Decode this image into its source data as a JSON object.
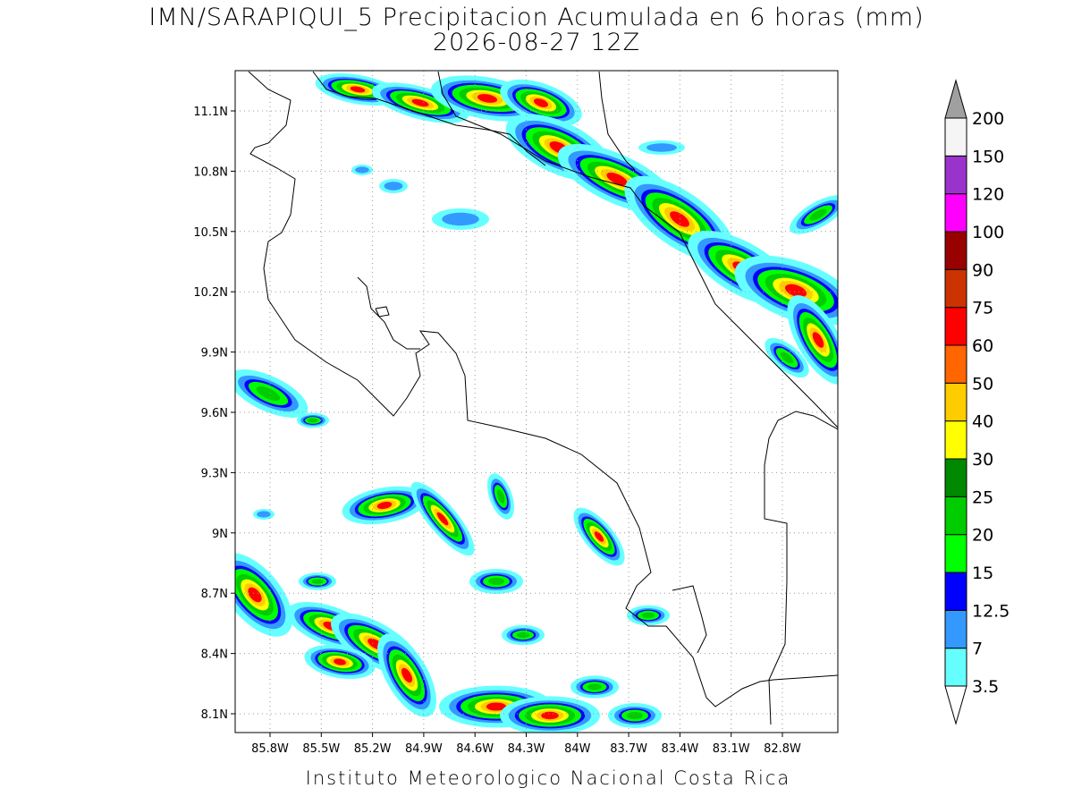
{
  "title": "IMN/SARAPIQUI_5 Precipitacion Acumulada en 6 horas (mm)",
  "subtitle": "2026-08-27 12Z",
  "map": {
    "lat_labels": [
      "11.1N",
      "10.8N",
      "10.5N",
      "10.2N",
      "9.9N",
      "9.6N",
      "9.3N",
      "9N",
      "8.7N",
      "8.4N",
      "8.1N"
    ],
    "lon_labels": [
      "85.8W",
      "85.5W",
      "85.2W",
      "84.9W",
      "84.6W",
      "84.3W",
      "84W",
      "83.7W",
      "83.4W",
      "83.1W",
      "82.8W"
    ],
    "grid": true
  },
  "colorbar": {
    "levels": [
      3.5,
      7,
      12.5,
      15,
      20,
      25,
      30,
      40,
      50,
      60,
      75,
      90,
      100,
      120,
      150,
      200
    ],
    "colors": [
      "#66ffff",
      "#3399ff",
      "#0000ff",
      "#00ff00",
      "#00cc00",
      "#008800",
      "#ffff00",
      "#ffcc00",
      "#ff6600",
      "#ff0000",
      "#cc3300",
      "#990000",
      "#ff00ff",
      "#9933cc",
      "#f5f5f5"
    ],
    "over_color": "#a0a0a0",
    "under_color": "#ffffff"
  },
  "footer": "Instituto Meteorologico Nacional Costa Rica"
}
